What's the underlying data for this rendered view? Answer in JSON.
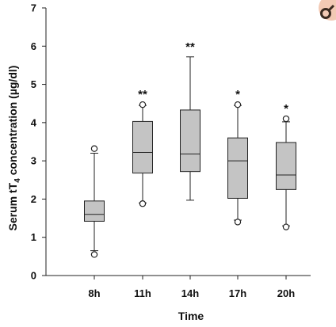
{
  "chart_data": {
    "type": "box",
    "xlabel": "Time",
    "ylabel": "Serum tT",
    "ylabel_sub": "4",
    "ylabel_rest": " concentration (µg/dl)",
    "ylim": [
      0,
      7
    ],
    "yticks": [
      0,
      1,
      2,
      3,
      4,
      5,
      6,
      7
    ],
    "categories": [
      "8h",
      "11h",
      "14h",
      "17h",
      "20h"
    ],
    "boxes": [
      {
        "category": "8h",
        "whisker_low": 0.65,
        "q1": 1.42,
        "median": 1.6,
        "q3": 1.95,
        "whisker_high": 3.2,
        "outliers": [
          0.55,
          3.32
        ],
        "significance": ""
      },
      {
        "category": "11h",
        "whisker_low": 1.9,
        "q1": 2.68,
        "median": 3.22,
        "q3": 4.03,
        "whisker_high": 4.45,
        "outliers": [
          1.88,
          4.47
        ],
        "significance": "**"
      },
      {
        "category": "14h",
        "whisker_low": 1.97,
        "q1": 2.72,
        "median": 3.18,
        "q3": 4.33,
        "whisker_high": 5.72,
        "outliers": [],
        "significance": "**"
      },
      {
        "category": "17h",
        "whisker_low": 1.45,
        "q1": 2.02,
        "median": 3.0,
        "q3": 3.6,
        "whisker_high": 4.45,
        "outliers": [
          1.4,
          4.47
        ],
        "significance": "*"
      },
      {
        "category": "20h",
        "whisker_low": 1.3,
        "q1": 2.25,
        "median": 2.63,
        "q3": 3.48,
        "whisker_high": 4.02,
        "outliers": [
          1.27,
          4.1
        ],
        "significance": "*"
      }
    ]
  },
  "corner_icon": "male-symbol-icon",
  "colors": {
    "box_fill": "#c4c4c4",
    "corner_badge": "#f2c9b4",
    "corner_symbol": "#3a2a20"
  }
}
